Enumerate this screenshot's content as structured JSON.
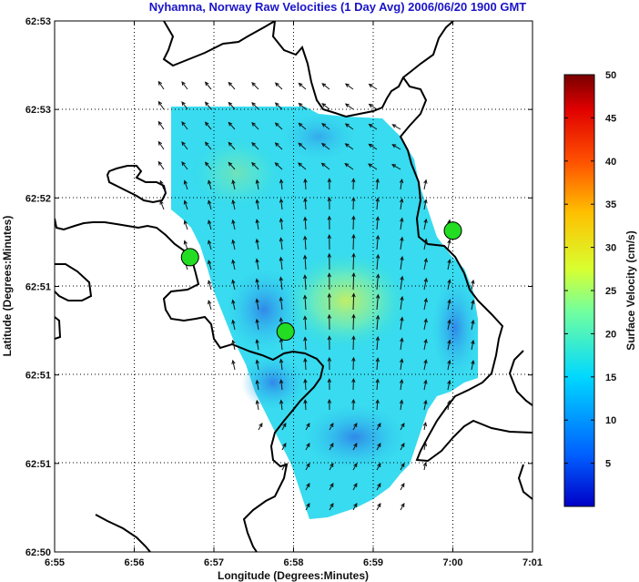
{
  "title": "Nyhamna, Norway Raw Velocities (1 Day Avg) 2006/06/20 1900 GMT",
  "colors": {
    "title": "#1a14c8",
    "coast": "#000000",
    "site_marker": "#22dd22"
  },
  "chart_data": {
    "type": "map",
    "title": "Nyhamna, Norway Raw Velocities (1 Day Avg) 2006/06/20 1900 GMT",
    "xlabel": "Longitude (Degrees:Minutes)",
    "ylabel": "Latitude (Degrees:Minutes)",
    "x_ticks": [
      "6:55",
      "6:56",
      "6:57",
      "6:58",
      "6:59",
      "7:00",
      "7:01"
    ],
    "y_ticks": [
      "62:50",
      "62:51",
      "62:51",
      "62:51",
      "62:52",
      "62:53",
      "62:53"
    ],
    "grid": true,
    "colorbar": {
      "label": "Surface Velocity (cm/s)",
      "ticks": [
        5,
        10,
        15,
        20,
        25,
        30,
        35,
        40,
        45,
        50
      ],
      "range": [
        0,
        50
      ],
      "colormap": "jet"
    },
    "sites": [
      {
        "lon_min": 56.7,
        "lat_frac": 0.555
      },
      {
        "lon_min": 57.9,
        "lat_frac": 0.415
      },
      {
        "lon_min": 60.0,
        "lat_frac": 0.605
      }
    ]
  }
}
